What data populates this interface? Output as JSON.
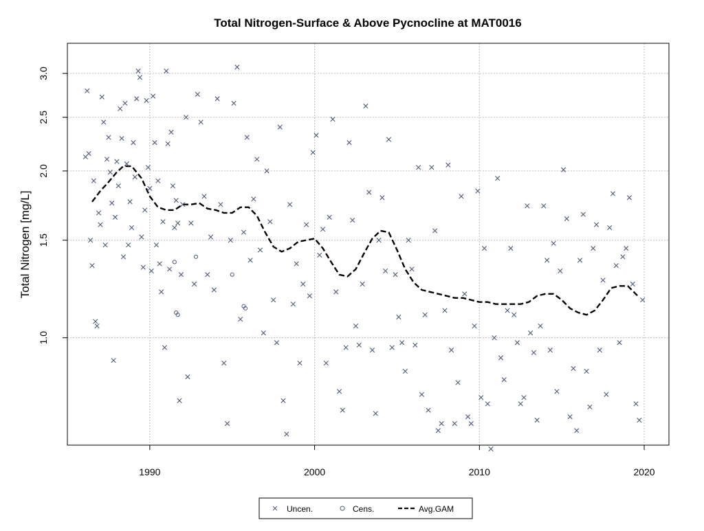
{
  "chart_data": {
    "type": "scatter",
    "title": "Total Nitrogen-Surface & Above Pycnocline at MAT0016",
    "xlabel": "",
    "ylabel": "Total Nitrogen [mg/L]",
    "xlim": [
      1985.0,
      2021.5
    ],
    "ylim": [
      0.64,
      3.4
    ],
    "y_scale": "log",
    "grid": true,
    "x_ticks": [
      1990,
      2000,
      2010,
      2020
    ],
    "x_tick_labels": [
      "1990",
      "2000",
      "2010",
      "2020"
    ],
    "y_ticks": [
      1.0,
      1.5,
      2.0,
      2.5,
      3.0
    ],
    "y_tick_labels": [
      "1.0",
      "1.5",
      "2.0",
      "2.5",
      "3.0"
    ],
    "legend": {
      "position": "bottom-center",
      "entries": [
        {
          "label": "Uncen.",
          "marker": "x"
        },
        {
          "label": "Cens.",
          "marker": "circle"
        },
        {
          "label": "Avg.GAM",
          "marker": "dashed-line"
        }
      ]
    },
    "colors": {
      "points": "#4a5a78",
      "gam": "#000000",
      "grid": "#bdbdbd",
      "frame": "#000000"
    },
    "series": [
      {
        "name": "Uncen.",
        "marker": "x",
        "points": [
          [
            1986.1,
            2.12
          ],
          [
            1986.2,
            2.79
          ],
          [
            1986.3,
            2.15
          ],
          [
            1986.4,
            1.5
          ],
          [
            1986.5,
            1.35
          ],
          [
            1986.6,
            1.92
          ],
          [
            1986.7,
            1.07
          ],
          [
            1986.8,
            1.05
          ],
          [
            1986.9,
            1.68
          ],
          [
            1987.0,
            1.6
          ],
          [
            1987.1,
            2.72
          ],
          [
            1987.2,
            2.45
          ],
          [
            1987.3,
            1.47
          ],
          [
            1987.4,
            2.1
          ],
          [
            1987.5,
            2.3
          ],
          [
            1987.6,
            1.99
          ],
          [
            1987.7,
            1.75
          ],
          [
            1987.8,
            0.91
          ],
          [
            1987.9,
            1.65
          ],
          [
            1988.0,
            2.08
          ],
          [
            1988.1,
            1.88
          ],
          [
            1988.2,
            2.59
          ],
          [
            1988.3,
            2.29
          ],
          [
            1988.4,
            1.4
          ],
          [
            1988.5,
            2.65
          ],
          [
            1988.6,
            2.06
          ],
          [
            1988.7,
            1.47
          ],
          [
            1988.8,
            1.76
          ],
          [
            1988.9,
            1.58
          ],
          [
            1989.0,
            2.25
          ],
          [
            1989.1,
            1.95
          ],
          [
            1989.2,
            2.7
          ],
          [
            1989.3,
            3.03
          ],
          [
            1989.4,
            2.95
          ],
          [
            1989.5,
            1.52
          ],
          [
            1989.6,
            1.34
          ],
          [
            1989.7,
            1.7
          ],
          [
            1989.8,
            2.68
          ],
          [
            1989.9,
            2.03
          ],
          [
            1990.0,
            1.86
          ],
          [
            1990.1,
            1.32
          ],
          [
            1990.2,
            2.73
          ],
          [
            1990.3,
            2.25
          ],
          [
            1990.4,
            1.47
          ],
          [
            1990.5,
            1.92
          ],
          [
            1990.6,
            1.36
          ],
          [
            1990.7,
            1.21
          ],
          [
            1990.8,
            1.62
          ],
          [
            1990.9,
            0.96
          ],
          [
            1991.0,
            3.03
          ],
          [
            1991.1,
            2.24
          ],
          [
            1991.2,
            1.33
          ],
          [
            1991.3,
            2.35
          ],
          [
            1991.4,
            1.88
          ],
          [
            1991.5,
            1.58
          ],
          [
            1991.6,
            1.77
          ],
          [
            1991.7,
            1.61
          ],
          [
            1991.8,
            0.77
          ],
          [
            1991.9,
            1.3
          ],
          [
            1992.0,
            1.74
          ],
          [
            1992.2,
            2.5
          ],
          [
            1992.3,
            0.85
          ],
          [
            1992.5,
            1.61
          ],
          [
            1992.7,
            1.25
          ],
          [
            1992.9,
            2.75
          ],
          [
            1993.1,
            2.45
          ],
          [
            1993.3,
            1.8
          ],
          [
            1993.5,
            1.3
          ],
          [
            1993.7,
            1.52
          ],
          [
            1993.9,
            1.22
          ],
          [
            1994.1,
            2.7
          ],
          [
            1994.3,
            1.74
          ],
          [
            1994.5,
            0.9
          ],
          [
            1994.7,
            0.7
          ],
          [
            1994.9,
            1.5
          ],
          [
            1995.1,
            2.65
          ],
          [
            1995.3,
            3.08
          ],
          [
            1995.5,
            1.08
          ],
          [
            1995.7,
            1.55
          ],
          [
            1995.9,
            2.3
          ],
          [
            1996.1,
            1.38
          ],
          [
            1996.3,
            1.78
          ],
          [
            1996.5,
            2.1
          ],
          [
            1996.7,
            1.44
          ],
          [
            1996.9,
            1.02
          ],
          [
            1997.1,
            2.0
          ],
          [
            1997.3,
            1.62
          ],
          [
            1997.5,
            1.17
          ],
          [
            1997.7,
            0.98
          ],
          [
            1997.9,
            2.4
          ],
          [
            1998.1,
            0.77
          ],
          [
            1998.3,
            0.67
          ],
          [
            1998.5,
            1.74
          ],
          [
            1998.7,
            1.15
          ],
          [
            1998.9,
            1.36
          ],
          [
            1999.1,
            0.9
          ],
          [
            1999.3,
            1.25
          ],
          [
            1999.5,
            1.6
          ],
          [
            1999.7,
            1.19
          ],
          [
            1999.9,
            2.16
          ],
          [
            2000.1,
            2.32
          ],
          [
            2000.3,
            1.41
          ],
          [
            2000.5,
            1.57
          ],
          [
            2000.7,
            0.9
          ],
          [
            2000.9,
            1.65
          ],
          [
            2001.1,
            2.48
          ],
          [
            2001.3,
            1.21
          ],
          [
            2001.5,
            0.8
          ],
          [
            2001.7,
            0.74
          ],
          [
            2001.9,
            0.96
          ],
          [
            2002.1,
            2.25
          ],
          [
            2002.3,
            1.63
          ],
          [
            2002.5,
            1.05
          ],
          [
            2002.7,
            0.97
          ],
          [
            2002.9,
            1.25
          ],
          [
            2003.1,
            2.62
          ],
          [
            2003.3,
            1.83
          ],
          [
            2003.5,
            0.95
          ],
          [
            2003.7,
            0.73
          ],
          [
            2003.9,
            1.5
          ],
          [
            2004.1,
            1.79
          ],
          [
            2004.3,
            1.32
          ],
          [
            2004.5,
            2.28
          ],
          [
            2004.7,
            0.96
          ],
          [
            2004.9,
            1.3
          ],
          [
            2005.1,
            1.09
          ],
          [
            2005.3,
            0.98
          ],
          [
            2005.5,
            0.87
          ],
          [
            2005.7,
            1.5
          ],
          [
            2005.9,
            1.33
          ],
          [
            2006.1,
            0.97
          ],
          [
            2006.3,
            2.03
          ],
          [
            2006.5,
            0.79
          ],
          [
            2006.7,
            1.1
          ],
          [
            2006.9,
            0.74
          ],
          [
            2007.1,
            2.03
          ],
          [
            2007.3,
            1.56
          ],
          [
            2007.5,
            0.68
          ],
          [
            2007.7,
            0.7
          ],
          [
            2007.9,
            1.12
          ],
          [
            2008.1,
            2.05
          ],
          [
            2008.3,
            0.95
          ],
          [
            2008.5,
            0.7
          ],
          [
            2008.7,
            0.83
          ],
          [
            2008.9,
            1.8
          ],
          [
            2009.1,
            1.2
          ],
          [
            2009.3,
            0.72
          ],
          [
            2009.5,
            0.7
          ],
          [
            2009.7,
            1.05
          ],
          [
            2009.9,
            1.84
          ],
          [
            2010.1,
            0.78
          ],
          [
            2010.3,
            1.45
          ],
          [
            2010.5,
            0.76
          ],
          [
            2010.7,
            0.63
          ],
          [
            2010.9,
            1.0
          ],
          [
            2011.1,
            1.94
          ],
          [
            2011.3,
            0.92
          ],
          [
            2011.5,
            0.84
          ],
          [
            2011.7,
            1.12
          ],
          [
            2011.9,
            1.45
          ],
          [
            2012.1,
            1.1
          ],
          [
            2012.3,
            0.98
          ],
          [
            2012.5,
            0.76
          ],
          [
            2012.7,
            0.78
          ],
          [
            2012.9,
            1.73
          ],
          [
            2013.1,
            1.02
          ],
          [
            2013.3,
            0.94
          ],
          [
            2013.5,
            0.71
          ],
          [
            2013.7,
            1.05
          ],
          [
            2013.9,
            1.73
          ],
          [
            2014.1,
            1.38
          ],
          [
            2014.3,
            0.95
          ],
          [
            2014.5,
            1.48
          ],
          [
            2014.7,
            0.8
          ],
          [
            2014.9,
            1.32
          ],
          [
            2015.1,
            2.01
          ],
          [
            2015.3,
            1.64
          ],
          [
            2015.5,
            0.72
          ],
          [
            2015.7,
            0.88
          ],
          [
            2015.9,
            0.68
          ],
          [
            2016.1,
            1.38
          ],
          [
            2016.3,
            1.67
          ],
          [
            2016.5,
            0.87
          ],
          [
            2016.7,
            0.75
          ],
          [
            2016.9,
            1.45
          ],
          [
            2017.1,
            1.6
          ],
          [
            2017.3,
            0.95
          ],
          [
            2017.5,
            1.27
          ],
          [
            2017.7,
            0.79
          ],
          [
            2017.9,
            1.58
          ],
          [
            2018.1,
            1.82
          ],
          [
            2018.3,
            1.35
          ],
          [
            2018.5,
            0.98
          ],
          [
            2018.7,
            1.4
          ],
          [
            2018.9,
            1.45
          ],
          [
            2019.1,
            1.79
          ],
          [
            2019.3,
            1.25
          ],
          [
            2019.5,
            0.76
          ],
          [
            2019.7,
            0.71
          ],
          [
            2019.9,
            1.17
          ]
        ]
      },
      {
        "name": "Cens.",
        "marker": "circle",
        "points": [
          [
            1991.5,
            1.37
          ],
          [
            1991.6,
            1.11
          ],
          [
            1991.7,
            1.1
          ],
          [
            1992.8,
            1.4
          ],
          [
            1995.7,
            1.14
          ],
          [
            1995.8,
            1.13
          ],
          [
            1995.0,
            1.3
          ]
        ]
      },
      {
        "name": "Avg.GAM",
        "marker": "dashed-line",
        "points": [
          [
            1986.5,
            1.76
          ],
          [
            1987.0,
            1.84
          ],
          [
            1987.5,
            1.91
          ],
          [
            1988.0,
            1.99
          ],
          [
            1988.4,
            2.04
          ],
          [
            1988.9,
            2.04
          ],
          [
            1989.5,
            1.94
          ],
          [
            1990.0,
            1.8
          ],
          [
            1990.5,
            1.72
          ],
          [
            1991.0,
            1.7
          ],
          [
            1991.5,
            1.7
          ],
          [
            1992.0,
            1.74
          ],
          [
            1992.5,
            1.74
          ],
          [
            1993.0,
            1.75
          ],
          [
            1993.5,
            1.71
          ],
          [
            1994.0,
            1.7
          ],
          [
            1994.5,
            1.68
          ],
          [
            1995.0,
            1.68
          ],
          [
            1995.5,
            1.72
          ],
          [
            1996.0,
            1.72
          ],
          [
            1996.5,
            1.66
          ],
          [
            1997.0,
            1.55
          ],
          [
            1997.5,
            1.46
          ],
          [
            1998.0,
            1.43
          ],
          [
            1998.5,
            1.45
          ],
          [
            1999.0,
            1.49
          ],
          [
            1999.5,
            1.5
          ],
          [
            2000.0,
            1.51
          ],
          [
            2000.5,
            1.45
          ],
          [
            2001.0,
            1.37
          ],
          [
            2001.5,
            1.3
          ],
          [
            2002.0,
            1.29
          ],
          [
            2002.5,
            1.33
          ],
          [
            2003.0,
            1.42
          ],
          [
            2003.5,
            1.51
          ],
          [
            2004.0,
            1.56
          ],
          [
            2004.5,
            1.55
          ],
          [
            2005.0,
            1.44
          ],
          [
            2005.5,
            1.33
          ],
          [
            2006.0,
            1.26
          ],
          [
            2006.5,
            1.22
          ],
          [
            2007.0,
            1.21
          ],
          [
            2007.5,
            1.2
          ],
          [
            2008.0,
            1.19
          ],
          [
            2008.5,
            1.18
          ],
          [
            2009.0,
            1.18
          ],
          [
            2009.5,
            1.17
          ],
          [
            2010.0,
            1.16
          ],
          [
            2010.5,
            1.16
          ],
          [
            2011.0,
            1.15
          ],
          [
            2011.5,
            1.15
          ],
          [
            2012.0,
            1.15
          ],
          [
            2012.5,
            1.15
          ],
          [
            2013.0,
            1.16
          ],
          [
            2013.5,
            1.19
          ],
          [
            2014.0,
            1.2
          ],
          [
            2014.5,
            1.2
          ],
          [
            2015.0,
            1.17
          ],
          [
            2015.5,
            1.13
          ],
          [
            2016.0,
            1.11
          ],
          [
            2016.5,
            1.1
          ],
          [
            2017.0,
            1.12
          ],
          [
            2017.5,
            1.17
          ],
          [
            2018.0,
            1.23
          ],
          [
            2018.5,
            1.24
          ],
          [
            2019.0,
            1.24
          ],
          [
            2019.6,
            1.19
          ]
        ]
      }
    ]
  }
}
